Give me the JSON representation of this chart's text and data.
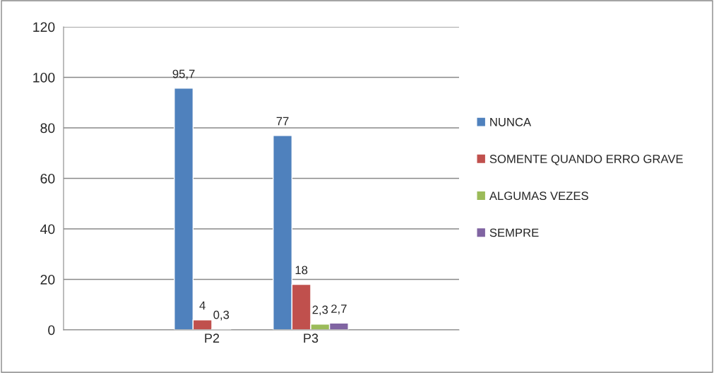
{
  "chart_data": {
    "type": "bar",
    "categories": [
      null,
      "P2",
      "P3",
      null
    ],
    "series": [
      {
        "name": "NUNCA",
        "color": "#4f81bd",
        "values": [
          null,
          95.7,
          77,
          null
        ],
        "value_labels": [
          null,
          "95,7",
          "77",
          null
        ]
      },
      {
        "name": "SOMENTE QUANDO ERRO GRAVE",
        "color": "#c0504d",
        "values": [
          null,
          4,
          18,
          null
        ],
        "value_labels": [
          null,
          "4",
          "18",
          null
        ]
      },
      {
        "name": "ALGUMAS VEZES",
        "color": "#9bbb59",
        "values": [
          null,
          0.3,
          2.3,
          null
        ],
        "value_labels": [
          null,
          "0,3",
          "2,3",
          null
        ]
      },
      {
        "name": "SEMPRE",
        "color": "#8064a2",
        "values": [
          null,
          null,
          2.7,
          null
        ],
        "value_labels": [
          null,
          null,
          "2,7",
          null
        ]
      }
    ],
    "ylim": [
      0,
      120
    ],
    "yticks": [
      0,
      20,
      40,
      60,
      80,
      100,
      120
    ],
    "grid": "y",
    "legend": "right"
  }
}
